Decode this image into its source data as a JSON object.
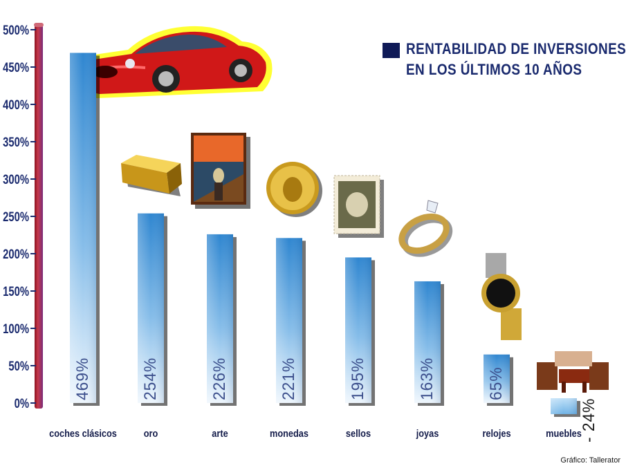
{
  "chart_data": {
    "type": "bar",
    "title_lines": [
      "RENTABILIDAD DE INVERSIONES",
      "EN LOS ÚLTIMOS 10 AÑOS"
    ],
    "categories": [
      "coches clásicos",
      "oro",
      "arte",
      "monedas",
      "sellos",
      "joyas",
      "relojes",
      "muebles"
    ],
    "values": [
      469,
      254,
      226,
      221,
      195,
      163,
      65,
      -24
    ],
    "value_labels": [
      "469%",
      "254%",
      "226%",
      "221%",
      "195%",
      "163%",
      "65%",
      "- 24%"
    ],
    "y_ticks": [
      0,
      50,
      100,
      150,
      200,
      250,
      300,
      350,
      400,
      450,
      500
    ],
    "y_tick_labels": [
      "0%",
      "50%",
      "100%",
      "150%",
      "200%",
      "250%",
      "300%",
      "350%",
      "400%",
      "450%",
      "500%"
    ],
    "ylim": [
      0,
      500
    ],
    "grid": false,
    "legend_position": "top-right",
    "icons": [
      "classic-car-icon",
      "gold-bar-icon",
      "painting-icon",
      "coin-icon",
      "stamp-icon",
      "ring-icon",
      "watch-icon",
      "furniture-icon"
    ],
    "colors": {
      "bar_top": "#2f86d0",
      "bar_bottom": "#e8f3fc",
      "axis_text": "#1a2a6e",
      "legend_box": "#0f1a57"
    }
  },
  "credit": "Gráfico: Tallerator"
}
